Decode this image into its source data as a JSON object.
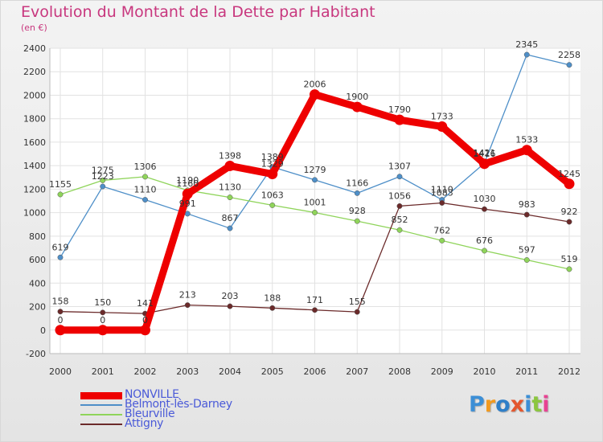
{
  "chart_data": {
    "type": "line",
    "title": "Evolution du Montant de la Dette par Habitant",
    "subtitle": "(en €)",
    "x": [
      "2000",
      "2001",
      "2002",
      "2003",
      "2004",
      "2005",
      "2006",
      "2007",
      "2008",
      "2009",
      "2010",
      "2011",
      "2012"
    ],
    "ylim": [
      -200,
      2400
    ],
    "yticks": [
      -200,
      0,
      200,
      400,
      600,
      800,
      1000,
      1200,
      1400,
      1600,
      1800,
      2000,
      2200,
      2400
    ],
    "grid": true,
    "legend_position": "bottom-left",
    "series": [
      {
        "name": "NONVILLE",
        "color": "#ee0000",
        "values": [
          0,
          0,
          0,
          1160,
          1398,
          1329,
          2006,
          1900,
          1790,
          1733,
          1416,
          1533,
          1245
        ]
      },
      {
        "name": "Belmont-lès-Darney",
        "color": "#4e8fc8",
        "values": [
          619,
          1223,
          1110,
          991,
          867,
          1389,
          1279,
          1166,
          1307,
          1110,
          1421,
          2345,
          2258
        ]
      },
      {
        "name": "Bleurville",
        "color": "#8fd45a",
        "values": [
          1155,
          1275,
          1306,
          1190,
          1130,
          1063,
          1001,
          928,
          852,
          762,
          676,
          597,
          519
        ]
      },
      {
        "name": "Attigny",
        "color": "#6b2a2a",
        "values": [
          158,
          150,
          141,
          213,
          203,
          188,
          171,
          155,
          1056,
          1083,
          1030,
          983,
          922
        ]
      }
    ]
  },
  "logo": {
    "text": "Proxiti",
    "colors": [
      "#3c8fd6",
      "#f29a1f",
      "#2f7fc8",
      "#e4572e",
      "#3c8fd6",
      "#8cc63f",
      "#e84393"
    ]
  }
}
